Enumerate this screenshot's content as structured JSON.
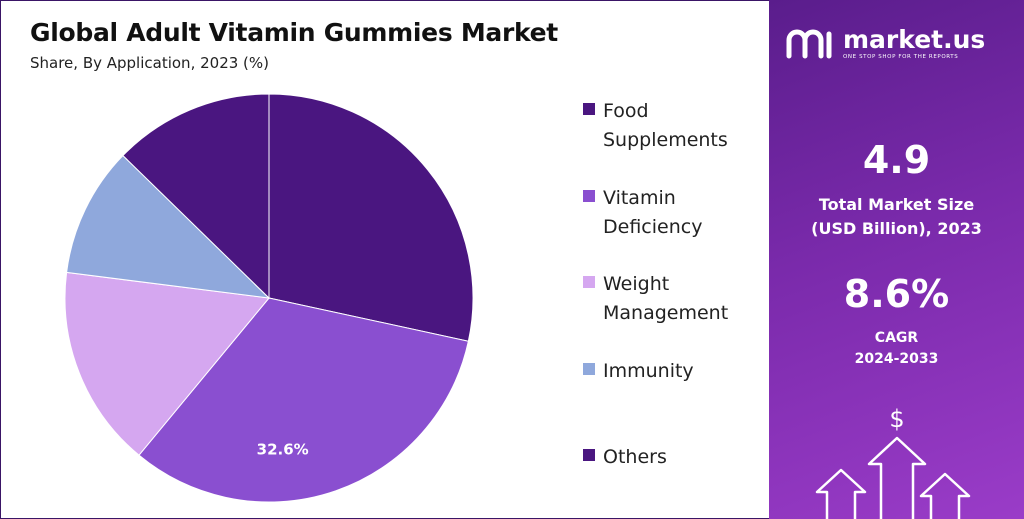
{
  "header": {
    "title": "Global Adult Vitamin Gummies Market",
    "subtitle": "Share, By Application, 2023 (%)"
  },
  "chart_data": {
    "type": "pie",
    "title": "Global Adult Vitamin Gummies Market",
    "subtitle": "Share, By Application, 2023 (%)",
    "categories": [
      "Food Supplements",
      "Vitamin Deficiency",
      "Weight Management",
      "Immunity",
      "Others"
    ],
    "values": [
      28.4,
      32.6,
      16.0,
      10.3,
      12.7
    ],
    "colors": [
      "#4a1680",
      "#8a4fd0",
      "#d5a7f0",
      "#8fa8dc",
      "#4a1680"
    ],
    "data_labels": [
      "",
      "32.6%",
      "",
      "",
      ""
    ],
    "legend": "right"
  },
  "legend": {
    "items": [
      {
        "label": "Food Supplements",
        "color": "#4a1680"
      },
      {
        "label": "Vitamin Deficiency",
        "color": "#8a4fd0"
      },
      {
        "label": "Weight Management",
        "color": "#d5a7f0"
      },
      {
        "label": "Immunity",
        "color": "#8fa8dc"
      },
      {
        "label": "Others",
        "color": "#4a1680"
      }
    ]
  },
  "panel": {
    "brand_name": "market.us",
    "brand_tagline": "ONE STOP SHOP FOR THE REPORTS",
    "market_size_value": "4.9",
    "market_size_label_line1": "Total Market Size",
    "market_size_label_line2": "(USD Billion), 2023",
    "cagr_value": "8.6%",
    "cagr_label_line1": "CAGR",
    "cagr_label_line2": "2024-2033",
    "currency_symbol": "$"
  }
}
